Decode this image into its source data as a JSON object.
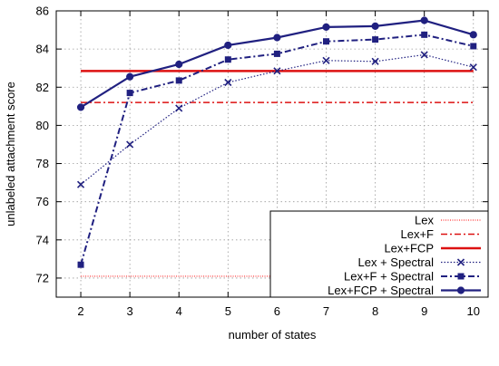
{
  "chart_data": {
    "type": "line",
    "xlabel": "number of states",
    "ylabel": "unlabeled attachment score",
    "xlim": [
      1.5,
      10.3
    ],
    "ylim": [
      71,
      86
    ],
    "xticks": [
      2,
      3,
      4,
      5,
      6,
      7,
      8,
      9,
      10
    ],
    "yticks": [
      72,
      74,
      76,
      78,
      80,
      82,
      84,
      86
    ],
    "grid": true,
    "legend_position": "bottom-right",
    "series": [
      {
        "name": "Lex",
        "style": "baseline",
        "color": "#ff8080",
        "dash": "1,1.5",
        "width": 2,
        "marker": "none",
        "x": [
          2,
          10
        ],
        "values": [
          72.1,
          72.1
        ]
      },
      {
        "name": "Lex+F",
        "style": "baseline",
        "color": "#dd1111",
        "dash": "7,3,2,3",
        "width": 1.5,
        "marker": "none",
        "x": [
          2,
          10
        ],
        "values": [
          81.2,
          81.2
        ]
      },
      {
        "name": "Lex+FCP",
        "style": "baseline",
        "color": "#dd1111",
        "dash": "",
        "width": 2.5,
        "marker": "none",
        "x": [
          2,
          10
        ],
        "values": [
          82.85,
          82.85
        ]
      },
      {
        "name": "Lex + Spectral",
        "style": "line",
        "color": "#202080",
        "dash": "1.5,2",
        "width": 1.2,
        "marker": "x",
        "x": [
          2,
          3,
          4,
          5,
          6,
          7,
          8,
          9,
          10
        ],
        "values": [
          76.9,
          79.0,
          80.9,
          82.25,
          82.85,
          83.4,
          83.35,
          83.7,
          83.05
        ]
      },
      {
        "name": "Lex+F + Spectral",
        "style": "line",
        "color": "#202080",
        "dash": "7,3,2,3",
        "width": 2,
        "marker": "square",
        "x": [
          2,
          3,
          4,
          5,
          6,
          7,
          8,
          9,
          10
        ],
        "values": [
          72.7,
          81.7,
          82.35,
          83.45,
          83.75,
          84.4,
          84.5,
          84.75,
          84.15
        ]
      },
      {
        "name": "Lex+FCP + Spectral",
        "style": "line",
        "color": "#202080",
        "dash": "",
        "width": 2.2,
        "marker": "circle",
        "x": [
          2,
          3,
          4,
          5,
          6,
          7,
          8,
          9,
          10
        ],
        "values": [
          80.95,
          82.55,
          83.2,
          84.2,
          84.6,
          85.15,
          85.2,
          85.5,
          84.75
        ]
      }
    ]
  }
}
